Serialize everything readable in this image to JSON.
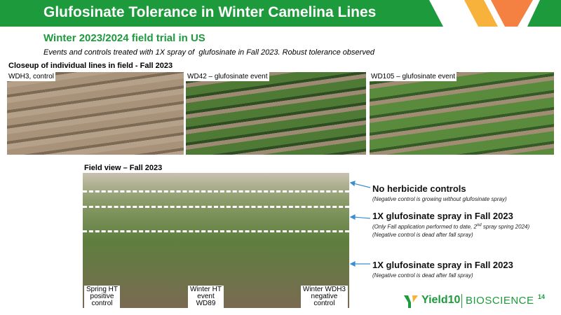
{
  "header": {
    "title": "Glufosinate Tolerance in Winter Camelina Lines"
  },
  "subtitle": "Winter 2023/2024 field trial in US",
  "description": "Events and controls treated with 1X spray of  glufosinate in Fall 2023. Robust tolerance observed",
  "closeup": {
    "heading": "Closeup of individual lines in field - Fall 2023",
    "photos": [
      {
        "label": "WDH3, control"
      },
      {
        "label": "WD42 – glufosinate event"
      },
      {
        "label": "WD105 – glufosinate event"
      }
    ]
  },
  "field_view": {
    "heading": "Field view – Fall 2023",
    "labels": [
      {
        "lines": [
          "Spring HT",
          "positive",
          "control"
        ]
      },
      {
        "lines": [
          "Winter HT",
          "event",
          "WD89"
        ]
      },
      {
        "lines": [
          "Winter WDH3",
          "negative",
          "control"
        ]
      }
    ]
  },
  "annotations": [
    {
      "title": "No herbicide controls",
      "notes": [
        "(Negative control is growing without glufosinate spray)"
      ]
    },
    {
      "title": "1X glufosinate spray in Fall 2023",
      "note_parts": [
        "(Only Fall application performed to date, 2",
        "nd",
        " spray spring 2024)"
      ],
      "notes": [
        "(Negative control is dead after fall spray)"
      ]
    },
    {
      "title": "1X glufosinate spray in Fall 2023",
      "notes": [
        "(Negative control is dead after fall spray)"
      ]
    }
  ],
  "page_number": "14",
  "logo": {
    "brand": "Yield10",
    "division": "BIOSCIENCE"
  }
}
